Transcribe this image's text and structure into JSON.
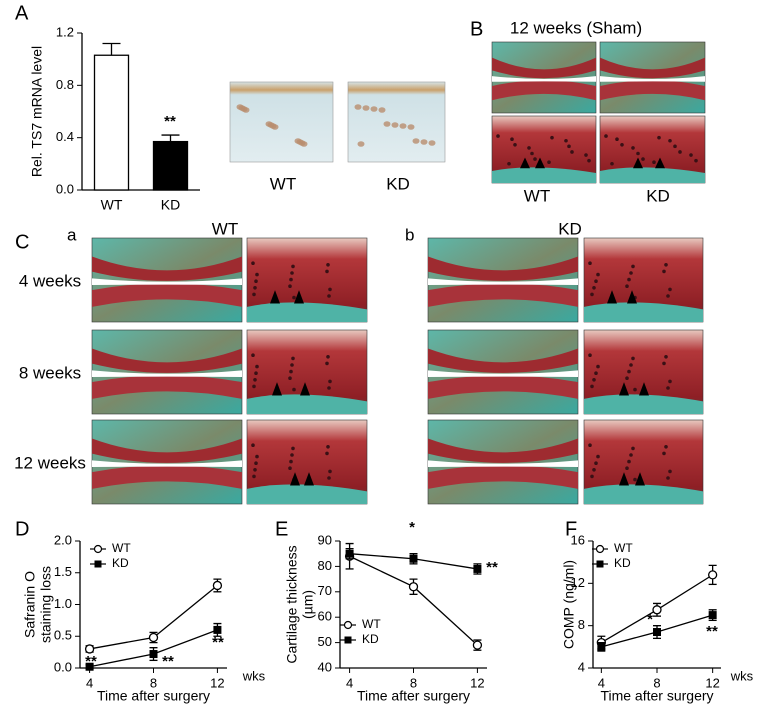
{
  "figure": {
    "panel_letters": [
      "A",
      "B",
      "C",
      "D",
      "E",
      "F"
    ],
    "panel_a_images": [
      "WT",
      "KD"
    ],
    "panel_b": {
      "title": "12 weeks (Sham)",
      "labels": [
        "WT",
        "KD"
      ]
    },
    "panel_c": {
      "sublabels": [
        "a",
        "b"
      ],
      "groups": [
        "WT",
        "KD"
      ],
      "rows": [
        "4 weeks",
        "8 weeks",
        "12 weeks"
      ]
    }
  },
  "chart_data": [
    {
      "type": "bar",
      "ylabel": "Rel. TS7 mRNA level",
      "categories": [
        "WT",
        "KD"
      ],
      "values": [
        1.03,
        0.37
      ],
      "errors": [
        0.09,
        0.05
      ],
      "colors": [
        "#ffffff",
        "#000000"
      ],
      "ylim": [
        0,
        1.2
      ],
      "yticks": [
        {
          "value": 0,
          "label": "0.0"
        },
        0.4,
        0.8,
        1.2
      ],
      "annotations": [
        "**"
      ]
    },
    {
      "type": "line",
      "ylabel": [
        "Safranin O",
        "staining loss"
      ],
      "xlabel": "Time after surgery",
      "xunit": "wks",
      "x": [
        4,
        8,
        12
      ],
      "xlim": [
        3.4,
        12.6
      ],
      "xticks": [
        4,
        8,
        12
      ],
      "ylim": [
        0,
        2
      ],
      "yticks": [
        {
          "value": 0,
          "label": "0.0"
        },
        0.5,
        {
          "value": 1,
          "label": "1.0"
        },
        1.5,
        {
          "value": 2,
          "label": "2.0"
        }
      ],
      "legend": "top-left",
      "series": [
        {
          "name": "WT",
          "color": "#000000",
          "marker": "circle-open",
          "values": [
            0.3,
            0.48,
            1.3
          ],
          "errors": [
            0.05,
            0.08,
            0.1
          ]
        },
        {
          "name": "KD",
          "color": "#000000",
          "marker": "square-filled",
          "values": [
            0.02,
            0.22,
            0.6
          ],
          "errors": [
            0.03,
            0.1,
            0.1
          ]
        }
      ],
      "annotations": [
        "**",
        "**",
        "**"
      ]
    },
    {
      "type": "line",
      "ylabel": [
        "Cartilage thickness",
        "(µm)"
      ],
      "xlabel": "Time after surgery",
      "x": [
        4,
        8,
        12
      ],
      "xlim": [
        3.4,
        12.6
      ],
      "xticks": [
        4,
        8,
        12
      ],
      "ylim": [
        40,
        90
      ],
      "yticks": [
        40,
        50,
        60,
        70,
        80,
        90
      ],
      "legend": "bottom-left",
      "series": [
        {
          "name": "WT",
          "color": "#000000",
          "marker": "circle-open",
          "values": [
            84,
            72,
            49
          ],
          "errors": [
            5,
            3,
            2
          ]
        },
        {
          "name": "KD",
          "color": "#000000",
          "marker": "square-filled",
          "values": [
            85,
            83,
            79
          ],
          "errors": [
            2,
            2,
            2
          ]
        }
      ],
      "annotations": [
        "*",
        "**"
      ]
    },
    {
      "type": "line",
      "ylabel": [
        "COMP (ng/ml)"
      ],
      "xlabel": "Time after surgery",
      "xunit": "wks",
      "x": [
        4,
        8,
        12
      ],
      "xlim": [
        3.4,
        12.6
      ],
      "xticks": [
        4,
        8,
        12
      ],
      "ylim": [
        4,
        16
      ],
      "yticks": [
        4,
        8,
        12,
        16
      ],
      "legend": "top-left",
      "series": [
        {
          "name": "WT",
          "color": "#000000",
          "marker": "circle-open",
          "values": [
            6.4,
            9.5,
            12.8
          ],
          "errors": [
            0.6,
            0.6,
            0.9
          ]
        },
        {
          "name": "KD",
          "color": "#000000",
          "marker": "square-filled",
          "values": [
            6,
            7.4,
            9
          ],
          "errors": [
            0.4,
            0.6,
            0.5
          ]
        }
      ],
      "annotations": [
        "*",
        "**"
      ]
    }
  ]
}
